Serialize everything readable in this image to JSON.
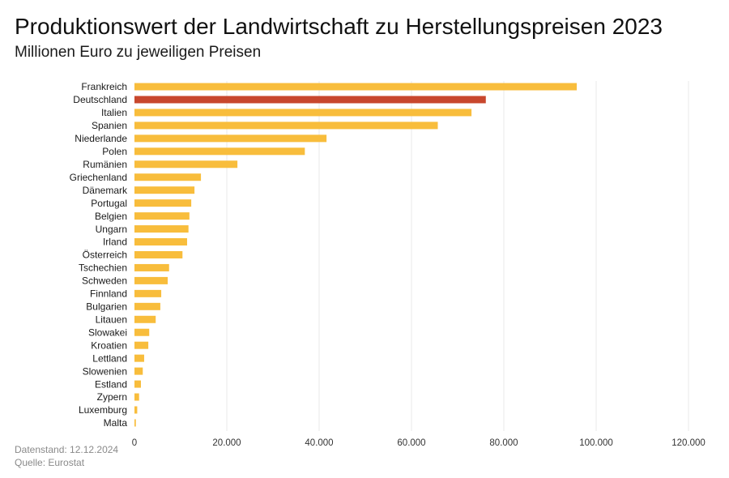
{
  "colors": {
    "bar": "#F8BD3C",
    "highlight": "#C8472D",
    "grid": "#E8E8E8",
    "text": "#1A1A1A",
    "muted": "#8A8A8A"
  },
  "footer": {
    "data_status": "Datenstand: 12.12.2024",
    "source": "Quelle: Eurostat"
  },
  "chart_data": {
    "type": "bar",
    "horizontal": true,
    "title": "Produktionswert der Landwirtschaft zu Herstellungspreisen 2023",
    "subtitle": "Millionen Euro zu jeweiligen Preisen",
    "categories": [
      "Frankreich",
      "Deutschland",
      "Italien",
      "Spanien",
      "Niederlande",
      "Polen",
      "Rumänien",
      "Griechenland",
      "Dänemark",
      "Portugal",
      "Belgien",
      "Ungarn",
      "Irland",
      "Österreich",
      "Tschechien",
      "Schweden",
      "Finnland",
      "Bulgarien",
      "Litauen",
      "Slowakei",
      "Kroatien",
      "Lettland",
      "Slowenien",
      "Estland",
      "Zypern",
      "Luxemburg",
      "Malta"
    ],
    "values": [
      95800,
      76100,
      73000,
      65700,
      41600,
      36900,
      22300,
      14400,
      13000,
      12300,
      11900,
      11700,
      11400,
      10400,
      7500,
      7200,
      5800,
      5600,
      4600,
      3200,
      3000,
      2100,
      1800,
      1400,
      1000,
      600,
      300
    ],
    "highlight_index": 1,
    "xlim": [
      0,
      120000
    ],
    "xticks": [
      0,
      20000,
      40000,
      60000,
      80000,
      100000,
      120000
    ],
    "xtick_labels": [
      "0",
      "20.000",
      "40.000",
      "60.000",
      "80.000",
      "100.000",
      "120.000"
    ],
    "grid_x": true
  }
}
